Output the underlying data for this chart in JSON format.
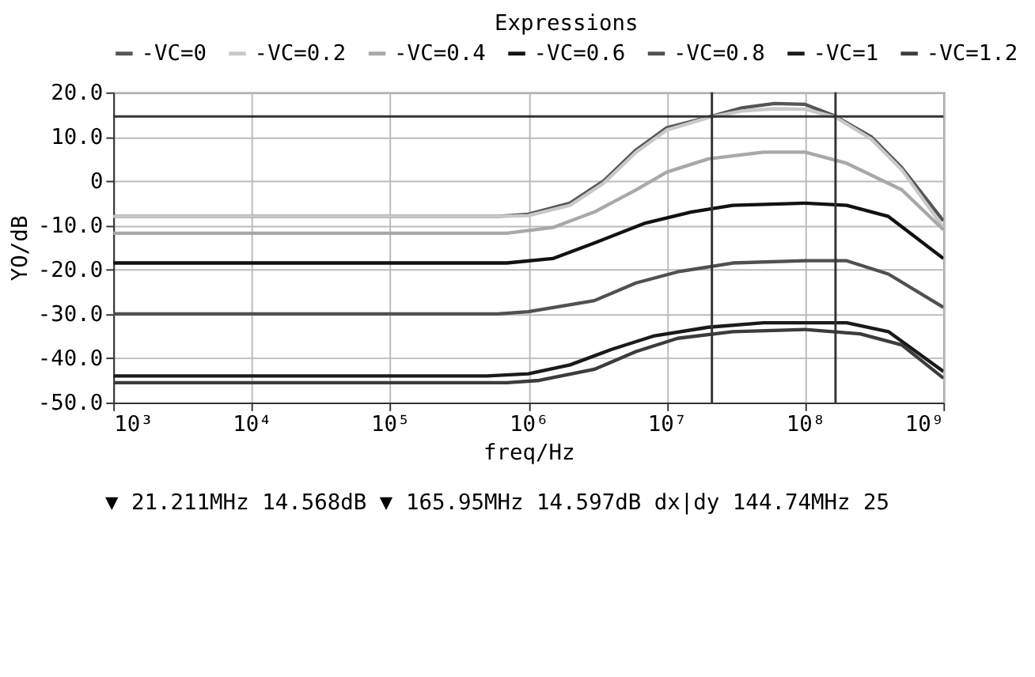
{
  "chart_data": {
    "type": "line",
    "legend_title": "Expressions",
    "xlabel": "freq/Hz",
    "ylabel": "YO/dB",
    "log": "x",
    "grid": true,
    "legend": "top",
    "marker": "none",
    "line_style": "solid",
    "xlim": [
      1000,
      1000000000
    ],
    "ylim": [
      -50,
      20
    ],
    "xticks": [
      {
        "value": 1000,
        "label": "10³"
      },
      {
        "value": 10000,
        "label": "10⁴"
      },
      {
        "value": 100000,
        "label": "10⁵"
      },
      {
        "value": 1000000,
        "label": "10⁶"
      },
      {
        "value": 10000000,
        "label": "10⁷"
      },
      {
        "value": 100000000,
        "label": "10⁸"
      },
      {
        "value": 1000000000,
        "label": "10⁹"
      }
    ],
    "yticks": [
      {
        "value": 20,
        "label": "20.0"
      },
      {
        "value": 10,
        "label": "10.0"
      },
      0,
      {
        "value": -10,
        "label": "-10.0"
      },
      {
        "value": -20,
        "label": "-20.0"
      },
      {
        "value": -30,
        "label": "-30.0"
      },
      {
        "value": -40,
        "label": "-40.0"
      },
      {
        "value": -50,
        "label": "-50.0"
      }
    ],
    "series": [
      {
        "name": "-VC=0",
        "color": "#555555",
        "x": [
          1000,
          600000,
          1000000,
          2000000,
          3500000,
          6000000,
          10000000,
          21000000,
          35000000,
          60000000,
          100000000,
          166000000,
          300000000,
          500000000,
          1000000000
        ],
        "values": [
          -8,
          -8,
          -7.5,
          -5,
          0,
          7,
          12,
          14.6,
          16.5,
          17.5,
          17.3,
          14.6,
          10,
          3,
          -9
        ]
      },
      {
        "name": "-VC=0.2",
        "color": "#c8c8c8",
        "x": [
          1000,
          600000,
          1000000,
          2000000,
          3500000,
          6000000,
          10000000,
          21000000,
          35000000,
          60000000,
          100000000,
          166000000,
          300000000,
          500000000,
          1000000000
        ],
        "values": [
          -8,
          -8,
          -7.8,
          -5.5,
          -0.5,
          6.5,
          11.5,
          14.5,
          15.8,
          16.3,
          16.2,
          14.4,
          9.5,
          2.5,
          -10.5
        ]
      },
      {
        "name": "-VC=0.4",
        "color": "#a8a8a8",
        "x": [
          1000,
          700000,
          1500000,
          3000000,
          6000000,
          10000000,
          20000000,
          50000000,
          100000000,
          200000000,
          500000000,
          1000000000
        ],
        "values": [
          -11.8,
          -11.8,
          -10.5,
          -7,
          -2,
          2,
          5,
          6.5,
          6.5,
          4,
          -2,
          -11
        ]
      },
      {
        "name": "-VC=0.6",
        "color": "#111111",
        "x": [
          1000,
          700000,
          1500000,
          3000000,
          7000000,
          15000000,
          30000000,
          100000000,
          200000000,
          400000000,
          1000000000
        ],
        "values": [
          -18.5,
          -18.5,
          -17.5,
          -14,
          -9.5,
          -7,
          -5.5,
          -5,
          -5.5,
          -8,
          -17.5
        ]
      },
      {
        "name": "-VC=0.8",
        "color": "#505050",
        "x": [
          1000,
          600000,
          1000000,
          3000000,
          6000000,
          12000000,
          30000000,
          100000000,
          200000000,
          400000000,
          1000000000
        ],
        "values": [
          -30,
          -30,
          -29.5,
          -27,
          -23,
          -20.5,
          -18.5,
          -18,
          -18,
          -21,
          -28.5
        ]
      },
      {
        "name": "-VC=1",
        "color": "#1a1a1a",
        "x": [
          1000,
          500000,
          1000000,
          2000000,
          4000000,
          8000000,
          20000000,
          50000000,
          200000000,
          400000000,
          1000000000
        ],
        "values": [
          -44,
          -44,
          -43.5,
          -41.5,
          -38,
          -35,
          -33,
          -32,
          -32,
          -34,
          -43
        ]
      },
      {
        "name": "-VC=1.2",
        "color": "#3c3c3c",
        "x": [
          1000,
          700000,
          1200000,
          3000000,
          6000000,
          12000000,
          30000000,
          100000000,
          250000000,
          500000000,
          1000000000
        ],
        "values": [
          -45.5,
          -45.5,
          -45,
          -42.5,
          -38.5,
          -35.5,
          -34,
          -33.5,
          -34.5,
          -37,
          -44.5
        ]
      }
    ],
    "ref_lines": [
      {
        "axis": "x",
        "value": 21211000,
        "label": null,
        "color": "#333333"
      },
      {
        "axis": "x",
        "value": 165950000,
        "label": null,
        "color": "#333333"
      },
      {
        "axis": "y",
        "value": 14.568,
        "label": null,
        "color": "#333333"
      }
    ],
    "annotations": [
      "▼ 21.211MHz    14.568dB ▼ 165.95MHz    14.597dB dx|dy 144.74MHz 25"
    ]
  }
}
